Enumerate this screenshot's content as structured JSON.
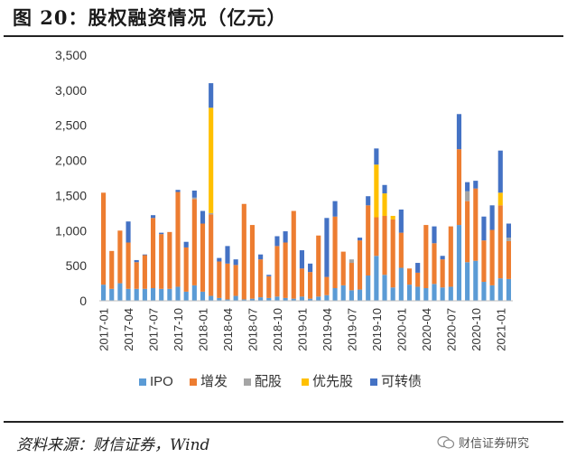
{
  "title": "图 20：股权融资情况（亿元）",
  "source": "资料来源：财信证券，Wind",
  "watermark": "财信证券研究",
  "colors": {
    "IPO": "#5b9bd5",
    "增发": "#ed7d31",
    "配股": "#a5a5a5",
    "优先股": "#ffc000",
    "可转债": "#4472c4"
  },
  "chart_data": {
    "type": "bar",
    "stacked": true,
    "ylim": [
      0,
      3500
    ],
    "yticks": [
      "0",
      "500",
      "1,000",
      "1,500",
      "2,000",
      "2,500",
      "3,000",
      "3,500"
    ],
    "ytick_values": [
      0,
      500,
      1000,
      1500,
      2000,
      2500,
      3000,
      3500
    ],
    "categories": [
      "2017-01",
      "2017-02",
      "2017-03",
      "2017-04",
      "2017-05",
      "2017-06",
      "2017-07",
      "2017-08",
      "2017-09",
      "2017-10",
      "2017-11",
      "2017-12",
      "2018-01",
      "2018-02",
      "2018-03",
      "2018-04",
      "2018-05",
      "2018-06",
      "2018-07",
      "2018-08",
      "2018-09",
      "2018-10",
      "2018-11",
      "2018-12",
      "2019-01",
      "2019-02",
      "2019-03",
      "2019-04",
      "2019-05",
      "2019-06",
      "2019-07",
      "2019-08",
      "2019-09",
      "2019-10",
      "2019-11",
      "2019-12",
      "2020-01",
      "2020-02",
      "2020-03",
      "2020-04",
      "2020-05",
      "2020-06",
      "2020-07",
      "2020-08",
      "2020-09",
      "2020-10",
      "2020-11",
      "2020-12",
      "2021-01",
      "2021-02"
    ],
    "x_tick_labels": [
      "2017-01",
      "2017-04",
      "2017-07",
      "2017-10",
      "2018-01",
      "2018-04",
      "2018-07",
      "2018-10",
      "2019-01",
      "2019-04",
      "2019-07",
      "2019-10",
      "2020-01",
      "2020-04",
      "2020-07",
      "2020-10",
      "2021-01"
    ],
    "legend_position": "bottom",
    "series": [
      {
        "name": "IPO",
        "values": [
          230,
          170,
          250,
          170,
          170,
          170,
          180,
          170,
          170,
          200,
          130,
          220,
          130,
          70,
          40,
          20,
          70,
          20,
          30,
          50,
          40,
          60,
          40,
          30,
          60,
          30,
          60,
          80,
          180,
          220,
          150,
          160,
          360,
          640,
          370,
          190,
          470,
          230,
          200,
          180,
          240,
          190,
          200,
          1080,
          550,
          570,
          270,
          220,
          320,
          310
        ]
      },
      {
        "name": "增发",
        "values": [
          1310,
          540,
          750,
          660,
          380,
          480,
          1000,
          780,
          810,
          1350,
          630,
          1230,
          970,
          1160,
          520,
          510,
          440,
          1360,
          1050,
          540,
          310,
          720,
          790,
          1250,
          400,
          380,
          870,
          260,
          1020,
          480,
          390,
          700,
          1000,
          550,
          840,
          970,
          500,
          230,
          200,
          900,
          580,
          400,
          860,
          1080,
          870,
          1030,
          590,
          790,
          1040,
          540
        ]
      },
      {
        "name": "配股",
        "values": [
          0,
          0,
          0,
          0,
          0,
          0,
          0,
          0,
          0,
          0,
          0,
          20,
          0,
          20,
          0,
          0,
          0,
          0,
          0,
          0,
          0,
          0,
          0,
          0,
          0,
          0,
          0,
          0,
          0,
          0,
          50,
          0,
          0,
          0,
          0,
          0,
          0,
          0,
          0,
          0,
          0,
          0,
          0,
          0,
          140,
          0,
          0,
          0,
          0,
          50
        ]
      },
      {
        "name": "优先股",
        "values": [
          0,
          0,
          0,
          0,
          0,
          0,
          0,
          0,
          0,
          0,
          0,
          0,
          0,
          1500,
          0,
          0,
          0,
          0,
          0,
          0,
          0,
          0,
          0,
          0,
          0,
          0,
          0,
          0,
          0,
          0,
          0,
          0,
          0,
          750,
          320,
          50,
          0,
          0,
          0,
          0,
          0,
          0,
          0,
          0,
          0,
          0,
          0,
          0,
          180,
          0
        ]
      },
      {
        "name": "可转债",
        "values": [
          0,
          0,
          0,
          300,
          30,
          10,
          40,
          20,
          0,
          30,
          80,
          100,
          180,
          350,
          50,
          250,
          80,
          0,
          0,
          70,
          20,
          140,
          160,
          0,
          260,
          120,
          0,
          840,
          220,
          0,
          0,
          40,
          130,
          230,
          120,
          0,
          330,
          0,
          140,
          0,
          240,
          50,
          0,
          500,
          130,
          110,
          340,
          350,
          600,
          200
        ]
      }
    ]
  }
}
